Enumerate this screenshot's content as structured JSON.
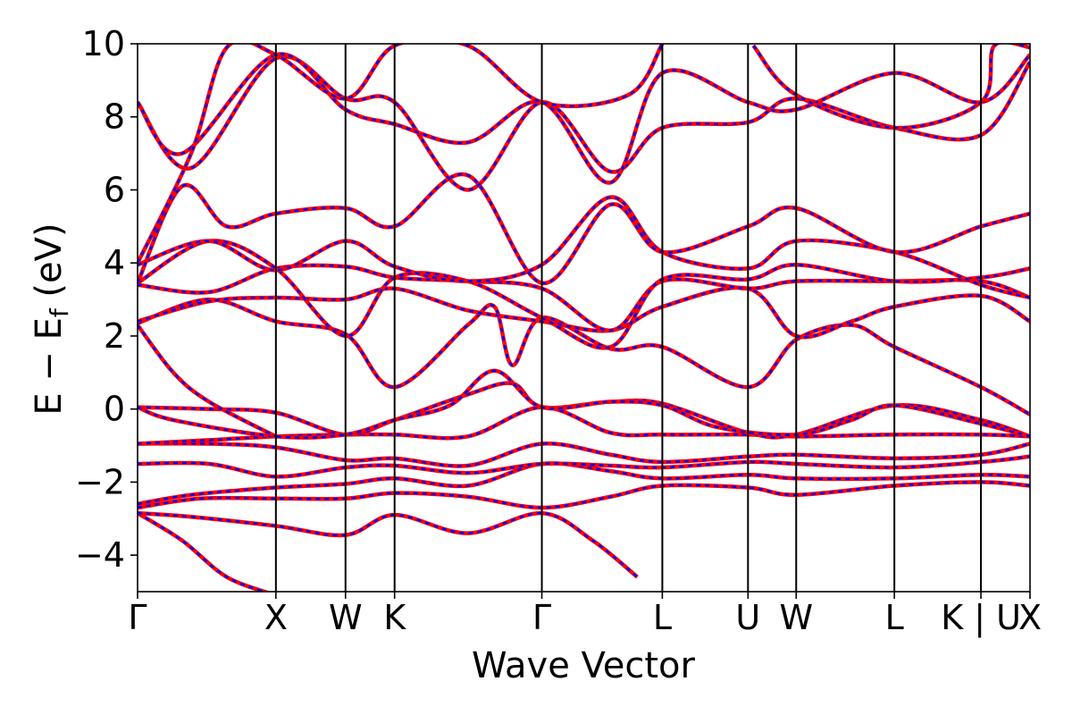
{
  "chart_data": {
    "type": "line",
    "xlabel": "Wave Vector",
    "ylabel": {
      "main": "E − E",
      "subscript": "f",
      "unit": " (eV)"
    },
    "ylim": [
      -5,
      10
    ],
    "y_ticks": [
      -4,
      -2,
      0,
      2,
      4,
      6,
      8,
      10
    ],
    "y_tick_labels": [
      "−4",
      "−2",
      "0",
      "2",
      "4",
      "6",
      "8",
      "10"
    ],
    "xlim": [
      0,
      1
    ],
    "high_symmetry_points": [
      {
        "label": "Γ",
        "x": 0.0
      },
      {
        "label": "X",
        "x": 0.155
      },
      {
        "label": "W",
        "x": 0.233
      },
      {
        "label": "K",
        "x": 0.288
      },
      {
        "label": "Γ",
        "x": 0.453
      },
      {
        "label": "L",
        "x": 0.588
      },
      {
        "label": "U",
        "x": 0.684
      },
      {
        "label": "W",
        "x": 0.738
      },
      {
        "label": "L",
        "x": 0.848
      },
      {
        "label": "K | U",
        "x": 0.945
      },
      {
        "label": "X",
        "x": 1.0
      }
    ],
    "grid": false,
    "series_style": [
      {
        "color": "#ff0000",
        "dash": "solid"
      },
      {
        "color": "#0000ff",
        "dash": "dashed"
      }
    ],
    "bands": [
      [
        [
          0,
          -2.85
        ],
        [
          0.05,
          -3.6
        ],
        [
          0.1,
          -4.6
        ],
        [
          0.155,
          -5.1
        ]
      ],
      [
        [
          0,
          -2.85
        ],
        [
          0.06,
          -2.95
        ],
        [
          0.155,
          -3.2
        ],
        [
          0.233,
          -3.45
        ],
        [
          0.288,
          -2.9
        ],
        [
          0.37,
          -3.4
        ],
        [
          0.453,
          -2.85
        ],
        [
          0.51,
          -3.6
        ],
        [
          0.56,
          -4.6
        ]
      ],
      [
        [
          0,
          -2.7
        ],
        [
          0.07,
          -2.45
        ],
        [
          0.155,
          -2.45
        ],
        [
          0.233,
          -2.45
        ],
        [
          0.288,
          -2.3
        ],
        [
          0.37,
          -2.4
        ],
        [
          0.453,
          -2.7
        ],
        [
          0.53,
          -2.4
        ],
        [
          0.588,
          -2.1
        ],
        [
          0.684,
          -2.15
        ],
        [
          0.738,
          -2.35
        ],
        [
          0.848,
          -2.1
        ],
        [
          0.945,
          -2.0
        ],
        [
          1.0,
          -2.1
        ]
      ],
      [
        [
          0,
          -2.6
        ],
        [
          0.06,
          -2.35
        ],
        [
          0.155,
          -2.15
        ],
        [
          0.233,
          -2.05
        ],
        [
          0.288,
          -1.9
        ],
        [
          0.37,
          -2.1
        ],
        [
          0.453,
          -1.5
        ],
        [
          0.53,
          -1.7
        ],
        [
          0.588,
          -1.9
        ],
        [
          0.684,
          -1.8
        ],
        [
          0.738,
          -1.9
        ],
        [
          0.848,
          -1.9
        ],
        [
          0.945,
          -1.8
        ],
        [
          1.0,
          -1.85
        ]
      ],
      [
        [
          0,
          -1.5
        ],
        [
          0.08,
          -1.5
        ],
        [
          0.155,
          -1.85
        ],
        [
          0.233,
          -1.6
        ],
        [
          0.288,
          -1.55
        ],
        [
          0.37,
          -1.75
        ],
        [
          0.453,
          -1.5
        ],
        [
          0.53,
          -1.55
        ],
        [
          0.588,
          -1.6
        ],
        [
          0.684,
          -1.45
        ],
        [
          0.738,
          -1.5
        ],
        [
          0.848,
          -1.6
        ],
        [
          0.945,
          -1.45
        ],
        [
          1.0,
          -1.3
        ]
      ],
      [
        [
          0,
          -0.95
        ],
        [
          0.08,
          -0.95
        ],
        [
          0.155,
          -1.05
        ],
        [
          0.233,
          -1.4
        ],
        [
          0.288,
          -1.35
        ],
        [
          0.37,
          -1.55
        ],
        [
          0.453,
          -0.95
        ],
        [
          0.53,
          -1.25
        ],
        [
          0.588,
          -1.45
        ],
        [
          0.684,
          -1.3
        ],
        [
          0.738,
          -1.25
        ],
        [
          0.848,
          -1.35
        ],
        [
          0.945,
          -1.25
        ],
        [
          1.0,
          -0.95
        ]
      ],
      [
        [
          0,
          -0.95
        ],
        [
          0.08,
          -0.85
        ],
        [
          0.155,
          -0.75
        ],
        [
          0.233,
          -0.7
        ],
        [
          0.288,
          -0.7
        ],
        [
          0.37,
          -0.75
        ],
        [
          0.453,
          0.05
        ],
        [
          0.53,
          -0.65
        ],
        [
          0.588,
          -0.7
        ],
        [
          0.684,
          -0.7
        ],
        [
          0.738,
          -0.75
        ],
        [
          0.848,
          -0.7
        ],
        [
          0.945,
          -0.7
        ],
        [
          1.0,
          -0.75
        ]
      ],
      [
        [
          0,
          0.05
        ],
        [
          0.08,
          0.0
        ],
        [
          0.155,
          -0.1
        ],
        [
          0.233,
          -0.7
        ],
        [
          0.288,
          -0.3
        ],
        [
          0.37,
          0.4
        ],
        [
          0.42,
          0.7
        ],
        [
          0.453,
          0.05
        ],
        [
          0.53,
          0.2
        ],
        [
          0.588,
          0.15
        ],
        [
          0.684,
          -0.65
        ],
        [
          0.738,
          -0.7
        ],
        [
          0.848,
          0.1
        ],
        [
          0.945,
          -0.3
        ],
        [
          1.0,
          -0.75
        ]
      ],
      [
        [
          0,
          0.05
        ],
        [
          0.04,
          -0.3
        ],
        [
          0.155,
          -0.75
        ],
        [
          0.233,
          -0.7
        ],
        [
          0.288,
          -0.3
        ],
        [
          0.35,
          0.1
        ],
        [
          0.4,
          1.05
        ],
        [
          0.453,
          0.05
        ],
        [
          0.53,
          0.2
        ],
        [
          0.588,
          0.1
        ],
        [
          0.65,
          -0.5
        ],
        [
          0.738,
          -0.7
        ],
        [
          0.8,
          -0.3
        ],
        [
          0.848,
          0.1
        ],
        [
          0.945,
          -0.4
        ],
        [
          1.0,
          -0.75
        ]
      ],
      [
        [
          0,
          2.3
        ],
        [
          0.04,
          1.0
        ],
        [
          0.08,
          0.2
        ],
        [
          0.155,
          -0.75
        ]
      ],
      [
        [
          0,
          2.35
        ],
        [
          0.08,
          3.0
        ],
        [
          0.155,
          2.4
        ],
        [
          0.233,
          2.05
        ],
        [
          0.288,
          0.6
        ],
        [
          0.37,
          2.3
        ],
        [
          0.4,
          2.8
        ],
        [
          0.42,
          1.2
        ],
        [
          0.453,
          2.5
        ],
        [
          0.53,
          1.65
        ],
        [
          0.588,
          1.7
        ],
        [
          0.684,
          0.6
        ],
        [
          0.738,
          1.9
        ],
        [
          0.8,
          2.3
        ],
        [
          0.848,
          1.7
        ],
        [
          0.945,
          0.6
        ],
        [
          1.0,
          -0.15
        ]
      ],
      [
        [
          0,
          2.4
        ],
        [
          0.08,
          2.95
        ],
        [
          0.155,
          3.05
        ],
        [
          0.233,
          3.0
        ],
        [
          0.288,
          3.3
        ],
        [
          0.37,
          2.7
        ],
        [
          0.453,
          2.4
        ],
        [
          0.53,
          2.15
        ],
        [
          0.588,
          2.8
        ],
        [
          0.684,
          3.3
        ],
        [
          0.738,
          2.0
        ],
        [
          0.8,
          2.4
        ],
        [
          0.848,
          2.8
        ],
        [
          0.945,
          3.1
        ],
        [
          1.0,
          2.4
        ]
      ],
      [
        [
          0,
          3.4
        ],
        [
          0.08,
          3.2
        ],
        [
          0.155,
          3.85
        ],
        [
          0.233,
          3.9
        ],
        [
          0.288,
          3.6
        ],
        [
          0.37,
          3.5
        ],
        [
          0.453,
          3.3
        ],
        [
          0.53,
          2.15
        ],
        [
          0.588,
          3.5
        ],
        [
          0.684,
          3.3
        ],
        [
          0.738,
          3.5
        ],
        [
          0.848,
          3.5
        ],
        [
          0.945,
          3.5
        ],
        [
          1.0,
          3.05
        ]
      ],
      [
        [
          0,
          3.45
        ],
        [
          0.08,
          4.6
        ],
        [
          0.155,
          3.85
        ],
        [
          0.233,
          2.0
        ],
        [
          0.288,
          3.6
        ],
        [
          0.37,
          3.5
        ],
        [
          0.453,
          2.5
        ],
        [
          0.53,
          1.7
        ],
        [
          0.588,
          3.55
        ],
        [
          0.684,
          3.55
        ],
        [
          0.738,
          3.95
        ],
        [
          0.848,
          3.5
        ],
        [
          0.945,
          3.6
        ],
        [
          1.0,
          3.85
        ]
      ],
      [
        [
          0,
          3.95
        ],
        [
          0.08,
          4.6
        ],
        [
          0.155,
          3.8
        ],
        [
          0.233,
          4.6
        ],
        [
          0.288,
          3.9
        ],
        [
          0.37,
          3.5
        ],
        [
          0.453,
          3.95
        ],
        [
          0.53,
          5.8
        ],
        [
          0.588,
          4.3
        ],
        [
          0.684,
          3.85
        ],
        [
          0.738,
          4.6
        ],
        [
          0.848,
          4.3
        ],
        [
          0.945,
          3.4
        ],
        [
          1.0,
          3.05
        ]
      ],
      [
        [
          0,
          3.45
        ],
        [
          0.05,
          6.1
        ],
        [
          0.1,
          5.0
        ],
        [
          0.155,
          5.35
        ],
        [
          0.233,
          5.5
        ],
        [
          0.288,
          5.0
        ],
        [
          0.37,
          6.4
        ],
        [
          0.453,
          3.45
        ],
        [
          0.53,
          5.6
        ],
        [
          0.588,
          4.3
        ],
        [
          0.684,
          5.0
        ],
        [
          0.738,
          5.5
        ],
        [
          0.848,
          4.3
        ],
        [
          0.945,
          5.0
        ],
        [
          1.0,
          5.35
        ]
      ],
      [
        [
          0,
          8.4
        ],
        [
          0.06,
          6.6
        ],
        [
          0.155,
          9.6
        ],
        [
          0.233,
          8.5
        ],
        [
          0.288,
          8.4
        ],
        [
          0.37,
          6.0
        ],
        [
          0.453,
          8.4
        ],
        [
          0.53,
          6.5
        ],
        [
          0.588,
          7.7
        ],
        [
          0.684,
          7.85
        ],
        [
          0.738,
          8.5
        ],
        [
          0.848,
          7.7
        ],
        [
          0.945,
          7.5
        ],
        [
          1.0,
          9.5
        ]
      ],
      [
        [
          0,
          8.4
        ],
        [
          0.05,
          7.0
        ],
        [
          0.155,
          9.7
        ],
        [
          0.233,
          8.2
        ],
        [
          0.288,
          7.8
        ],
        [
          0.37,
          7.3
        ],
        [
          0.453,
          8.4
        ],
        [
          0.53,
          6.2
        ],
        [
          0.588,
          9.2
        ],
        [
          0.684,
          8.4
        ],
        [
          0.738,
          8.2
        ],
        [
          0.848,
          9.2
        ],
        [
          0.945,
          8.4
        ],
        [
          1.0,
          9.7
        ]
      ],
      [
        [
          0,
          4.0
        ],
        [
          0.06,
          7.0
        ],
        [
          0.1,
          9.9
        ],
        [
          0.155,
          9.7
        ],
        [
          0.233,
          8.5
        ],
        [
          0.288,
          9.95
        ],
        [
          0.37,
          9.95
        ],
        [
          0.453,
          8.4
        ],
        [
          0.55,
          8.6
        ],
        [
          0.588,
          10.0
        ]
      ],
      [
        [
          0.69,
          9.95
        ],
        [
          0.738,
          8.6
        ],
        [
          0.848,
          7.7
        ],
        [
          0.945,
          8.4
        ],
        [
          0.96,
          9.95
        ],
        [
          1.0,
          9.9
        ]
      ]
    ]
  }
}
